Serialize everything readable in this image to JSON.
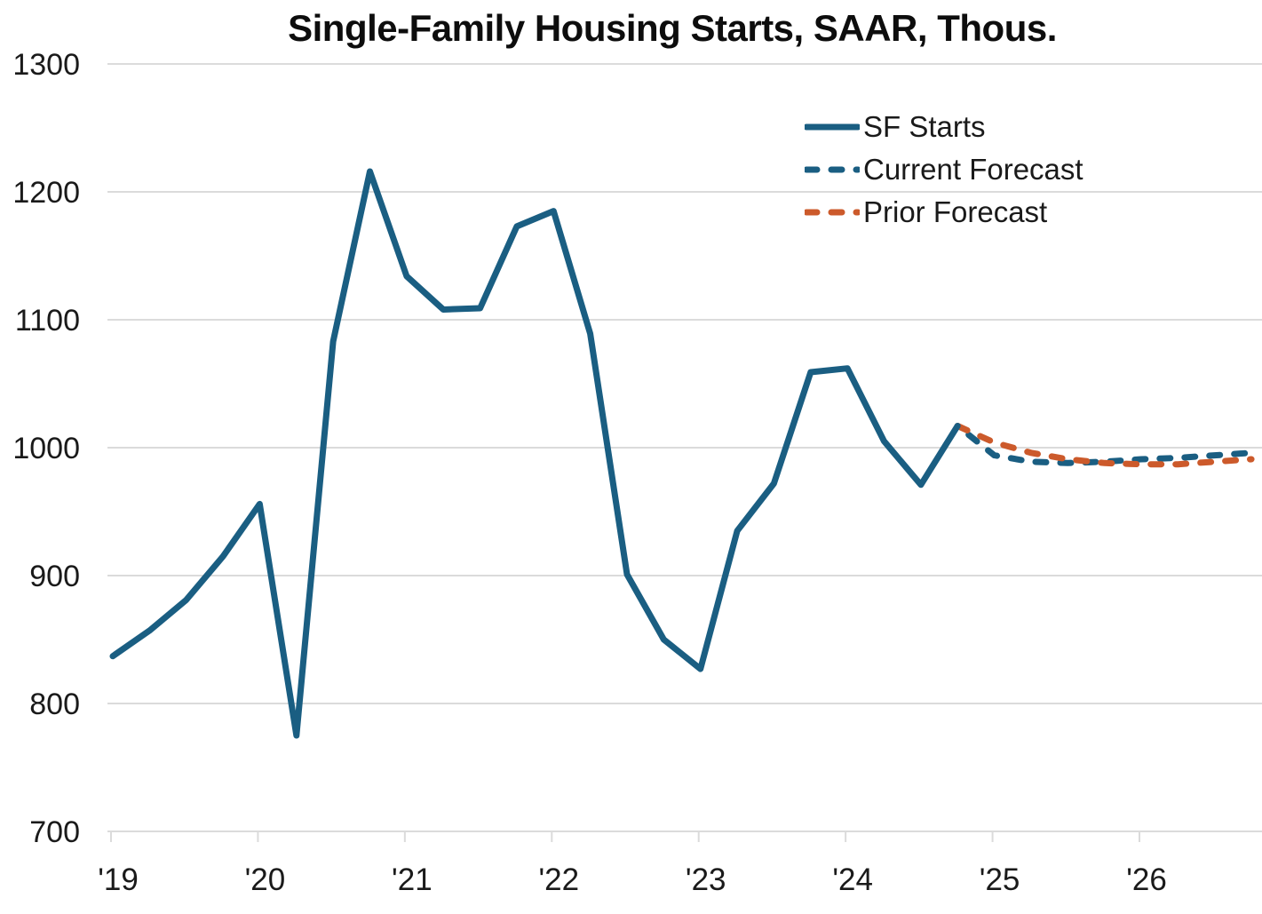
{
  "title": "Single-Family Housing Starts, SAAR, Thous.",
  "legend": {
    "items": [
      {
        "label": "SF Starts",
        "style": "solid",
        "color": "#1A5E82"
      },
      {
        "label": "Current Forecast",
        "style": "dashed",
        "color": "#1A5E82"
      },
      {
        "label": "Prior Forecast",
        "style": "dashed",
        "color": "#CC5A2B"
      }
    ]
  },
  "chart_data": {
    "type": "line",
    "title": "Single-Family Housing Starts, SAAR, Thous.",
    "frequency": "quarterly",
    "x_tick_labels": [
      "'19",
      "'20",
      "'21",
      "'22",
      "'23",
      "'24",
      "'25",
      "'26"
    ],
    "y_ticks": [
      700,
      800,
      900,
      1000,
      1100,
      1200,
      1300
    ],
    "ylim": [
      700,
      1300
    ],
    "x_range": [
      "2019Q1",
      "2026Q4"
    ],
    "grid": "horizontal-only",
    "legend_position": "upper-right",
    "series": [
      {
        "name": "SF Starts",
        "kind": "actual",
        "line_style": "solid",
        "color": "#1A5E82",
        "start_period": "2019Q1",
        "values": [
          837,
          857,
          881,
          915,
          956,
          775,
          1083,
          1216,
          1134,
          1108,
          1109,
          1173,
          1185,
          1089,
          901,
          850,
          827,
          935,
          972,
          1059,
          1062,
          1005,
          971,
          1017
        ]
      },
      {
        "name": "Current Forecast",
        "kind": "forecast",
        "line_style": "dashed",
        "color": "#1A5E82",
        "start_period": "2024Q4",
        "values": [
          1017,
          994,
          989,
          988,
          989,
          991,
          992,
          994,
          996
        ]
      },
      {
        "name": "Prior Forecast",
        "kind": "forecast",
        "line_style": "dashed",
        "color": "#CC5A2B",
        "start_period": "2024Q4",
        "values": [
          1017,
          1004,
          996,
          991,
          988,
          987,
          987,
          989,
          991
        ]
      }
    ]
  },
  "colors": {
    "grid": "#DBDBDB",
    "axis_text": "#1A1A1A",
    "background": "#FFFFFF"
  }
}
